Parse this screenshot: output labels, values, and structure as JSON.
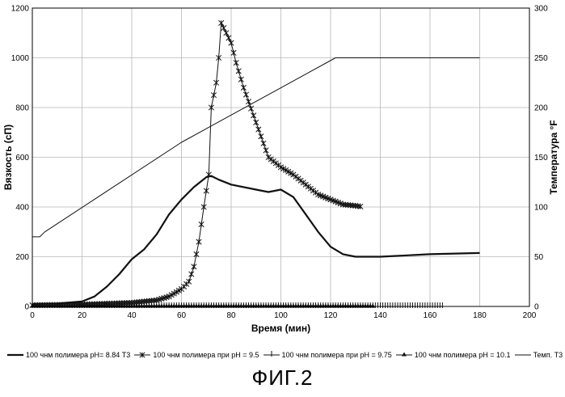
{
  "chart_data": {
    "type": "line",
    "xlabel": "Время (мин)",
    "ylabel": "Вязкость (сП)",
    "y2label": "Температура °F",
    "xlim": [
      0,
      200
    ],
    "ylim": [
      0,
      1200
    ],
    "y2lim": [
      0,
      300
    ],
    "xticks": [
      0,
      20,
      40,
      60,
      80,
      100,
      120,
      140,
      160,
      180,
      200
    ],
    "yticks": [
      0,
      200,
      400,
      600,
      800,
      1000,
      1200
    ],
    "y2ticks": [
      0,
      50,
      100,
      150,
      200,
      250,
      300
    ],
    "grid": true,
    "legend_position": "bottom",
    "series": [
      {
        "name": "100 чнм полимера рН= 8.84 Т3",
        "axis": "left",
        "marker": "none",
        "x": [
          0,
          10,
          20,
          25,
          30,
          35,
          40,
          45,
          50,
          55,
          60,
          65,
          70,
          72,
          75,
          80,
          90,
          95,
          100,
          105,
          110,
          115,
          120,
          125,
          130,
          140,
          160,
          180
        ],
        "values": [
          10,
          12,
          20,
          40,
          80,
          130,
          190,
          230,
          290,
          370,
          430,
          480,
          520,
          525,
          510,
          490,
          470,
          460,
          470,
          440,
          370,
          300,
          240,
          210,
          200,
          200,
          210,
          215
        ]
      },
      {
        "name": "100 чнм полимера при рН = 9.5",
        "axis": "left",
        "marker": "star",
        "x": [
          0,
          20,
          40,
          50,
          55,
          60,
          63,
          65,
          67,
          69,
          71,
          72,
          74,
          75,
          76,
          78,
          80,
          82,
          85,
          90,
          95,
          100,
          105,
          110,
          115,
          120,
          125,
          130,
          132
        ],
        "values": [
          5,
          8,
          15,
          25,
          40,
          70,
          100,
          160,
          260,
          400,
          530,
          800,
          900,
          1000,
          1140,
          1100,
          1060,
          980,
          880,
          740,
          600,
          560,
          530,
          490,
          450,
          430,
          410,
          405,
          402
        ]
      },
      {
        "name": "100 чнм полимера при рН = 9.75",
        "axis": "left",
        "marker": "plus",
        "x": [
          0,
          20,
          40,
          60,
          80,
          100,
          120,
          140,
          165
        ],
        "values": [
          0,
          0,
          0,
          0,
          0,
          0,
          0,
          0,
          0
        ]
      },
      {
        "name": "100 чнм полимера рН = 10.1",
        "axis": "left",
        "marker": "triangle",
        "x": [
          0,
          20,
          40,
          60,
          80,
          100,
          120,
          137
        ],
        "values": [
          0,
          0,
          0,
          0,
          0,
          0,
          0,
          0
        ]
      },
      {
        "name": "Темп. Т3",
        "axis": "right",
        "marker": "none",
        "x": [
          0,
          3,
          5,
          60,
          122,
          150,
          180
        ],
        "values": [
          70,
          70,
          75,
          165,
          250,
          250,
          250
        ]
      }
    ]
  },
  "figure_label": "ФИГ.2",
  "colors": {
    "line": "#111111",
    "grid": "#b8b8b8",
    "frame": "#000000"
  }
}
